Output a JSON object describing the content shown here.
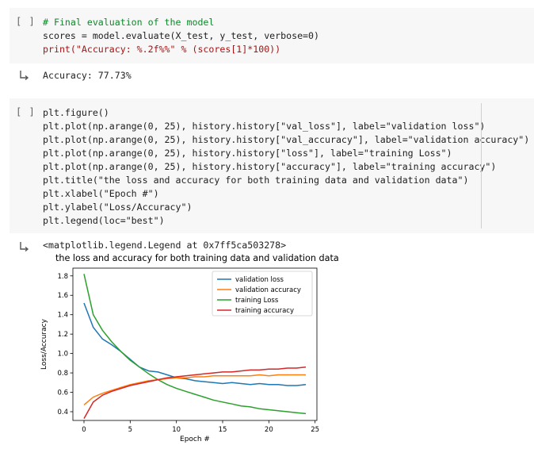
{
  "cells": [
    {
      "run_label": "[ ]",
      "code_lines": [
        "# Final evaluation of the model",
        "scores = model.evaluate(X_test, y_test, verbose=0)",
        "print(\"Accuracy: %.2f%%\" % (scores[1]*100))"
      ],
      "output": "Accuracy: 77.73%"
    },
    {
      "run_label": "[ ]",
      "code_lines": [
        "plt.figure()",
        "plt.plot(np.arange(0, 25), history.history[\"val_loss\"], label=\"validation loss\")",
        "plt.plot(np.arange(0, 25), history.history[\"val_accuracy\"], label=\"validation accuracy\")",
        "plt.plot(np.arange(0, 25), history.history[\"loss\"], label=\"training Loss\")",
        "plt.plot(np.arange(0, 25), history.history[\"accuracy\"], label=\"training accuracy\")",
        "plt.title(\"the loss and accuracy for both training data and validation data\")",
        "plt.xlabel(\"Epoch #\")",
        "plt.ylabel(\"Loss/Accuracy\")",
        "plt.legend(loc=\"best\")"
      ],
      "output": "<matplotlib.legend.Legend at 0x7ff5ca503278>"
    }
  ],
  "icons": {
    "output": "output-arrow-icon"
  },
  "chart_data": {
    "type": "line",
    "title": "the loss and accuracy for both training data and validation data",
    "xlabel": "Epoch #",
    "ylabel": "Loss/Accuracy",
    "xlim": [
      -1.2,
      25.2
    ],
    "ylim": [
      0.31,
      1.88
    ],
    "xticks": [
      0,
      5,
      10,
      15,
      20,
      25
    ],
    "yticks": [
      0.4,
      0.6,
      0.8,
      1.0,
      1.2,
      1.4,
      1.6,
      1.8
    ],
    "legend_loc": "top-right",
    "x": [
      0,
      1,
      2,
      3,
      4,
      5,
      6,
      7,
      8,
      9,
      10,
      11,
      12,
      13,
      14,
      15,
      16,
      17,
      18,
      19,
      20,
      21,
      22,
      23,
      24
    ],
    "series": [
      {
        "name": "validation loss",
        "color": "#1f77b4",
        "values": [
          1.52,
          1.27,
          1.15,
          1.09,
          1.02,
          0.94,
          0.86,
          0.82,
          0.81,
          0.78,
          0.75,
          0.74,
          0.72,
          0.71,
          0.7,
          0.69,
          0.7,
          0.69,
          0.68,
          0.69,
          0.68,
          0.68,
          0.67,
          0.67,
          0.68
        ]
      },
      {
        "name": "validation accuracy",
        "color": "#ff7f0e",
        "values": [
          0.47,
          0.55,
          0.59,
          0.62,
          0.65,
          0.68,
          0.7,
          0.72,
          0.73,
          0.74,
          0.75,
          0.75,
          0.76,
          0.76,
          0.77,
          0.77,
          0.77,
          0.77,
          0.77,
          0.78,
          0.77,
          0.78,
          0.78,
          0.78,
          0.78
        ]
      },
      {
        "name": "training Loss",
        "color": "#2ca02c",
        "values": [
          1.82,
          1.4,
          1.24,
          1.12,
          1.02,
          0.93,
          0.86,
          0.79,
          0.73,
          0.68,
          0.64,
          0.61,
          0.58,
          0.55,
          0.52,
          0.5,
          0.48,
          0.46,
          0.45,
          0.43,
          0.42,
          0.41,
          0.4,
          0.39,
          0.38
        ]
      },
      {
        "name": "training accuracy",
        "color": "#d62728",
        "values": [
          0.33,
          0.5,
          0.57,
          0.61,
          0.64,
          0.67,
          0.69,
          0.71,
          0.73,
          0.75,
          0.76,
          0.77,
          0.78,
          0.79,
          0.8,
          0.81,
          0.81,
          0.82,
          0.83,
          0.83,
          0.84,
          0.84,
          0.85,
          0.85,
          0.86
        ]
      }
    ]
  }
}
